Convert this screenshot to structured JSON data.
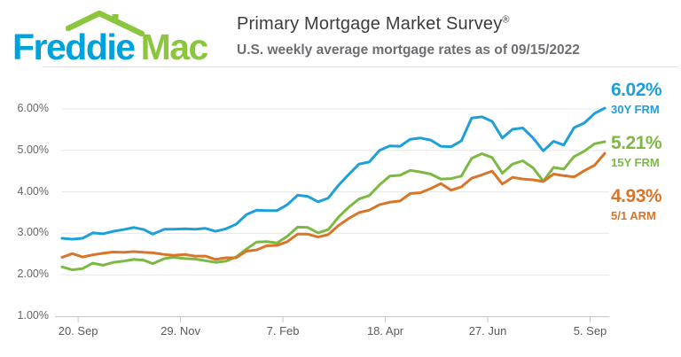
{
  "header": {
    "logo": {
      "part1": "Freddie",
      "part2": "Mac",
      "blue": "#00a2dc",
      "green": "#8cc63f",
      "icon": "house-roof-with-chimney-icon"
    },
    "title": "Primary Mortgage Market Survey",
    "title_mark": "®",
    "subtitle": "U.S. weekly average mortgage rates as of 09/15/2022"
  },
  "chart_data": {
    "type": "line",
    "title": "Primary Mortgage Market Survey®",
    "subtitle": "U.S. weekly average mortgage rates as of 09/15/2022",
    "grid": "horizontal",
    "legend_position": "right-edge-annotations",
    "ylim": [
      1.0,
      6.3
    ],
    "ylabel": "",
    "xlabel": "",
    "y_ticks": [
      {
        "label": "1.00%",
        "value": 1.0
      },
      {
        "label": "2.00%",
        "value": 2.0
      },
      {
        "label": "3.00%",
        "value": 3.0
      },
      {
        "label": "4.00%",
        "value": 4.0
      },
      {
        "label": "5.00%",
        "value": 5.0
      },
      {
        "label": "6.00%",
        "value": 6.0
      }
    ],
    "x_ticks": [
      {
        "label": "20. Sep",
        "date": "2021-09-20"
      },
      {
        "label": "29. Nov",
        "date": "2021-11-29"
      },
      {
        "label": "7. Feb",
        "date": "2022-02-07"
      },
      {
        "label": "18. Apr",
        "date": "2022-04-18"
      },
      {
        "label": "27. Jun",
        "date": "2022-06-27"
      },
      {
        "label": "5. Sep",
        "date": "2022-09-05"
      }
    ],
    "x": [
      "2021-09-09",
      "2021-09-16",
      "2021-09-23",
      "2021-09-30",
      "2021-10-07",
      "2021-10-14",
      "2021-10-21",
      "2021-10-28",
      "2021-11-04",
      "2021-11-10",
      "2021-11-18",
      "2021-11-24",
      "2021-12-02",
      "2021-12-09",
      "2021-12-16",
      "2021-12-23",
      "2021-12-30",
      "2022-01-06",
      "2022-01-13",
      "2022-01-20",
      "2022-01-27",
      "2022-02-03",
      "2022-02-10",
      "2022-02-17",
      "2022-02-24",
      "2022-03-03",
      "2022-03-10",
      "2022-03-17",
      "2022-03-24",
      "2022-03-31",
      "2022-04-07",
      "2022-04-14",
      "2022-04-21",
      "2022-04-28",
      "2022-05-05",
      "2022-05-12",
      "2022-05-19",
      "2022-05-26",
      "2022-06-02",
      "2022-06-09",
      "2022-06-16",
      "2022-06-23",
      "2022-06-30",
      "2022-07-07",
      "2022-07-14",
      "2022-07-21",
      "2022-07-28",
      "2022-08-04",
      "2022-08-11",
      "2022-08-18",
      "2022-08-25",
      "2022-09-01",
      "2022-09-08",
      "2022-09-15"
    ],
    "series": [
      {
        "name": "30Y FRM",
        "final_label": "6.02%",
        "final_value": 6.02,
        "color": "#1d9fda",
        "values": [
          2.88,
          2.86,
          2.88,
          3.01,
          2.99,
          3.05,
          3.09,
          3.14,
          3.09,
          2.98,
          3.1,
          3.1,
          3.11,
          3.1,
          3.12,
          3.05,
          3.11,
          3.22,
          3.45,
          3.56,
          3.55,
          3.55,
          3.69,
          3.92,
          3.89,
          3.76,
          3.85,
          4.16,
          4.42,
          4.67,
          4.72,
          5.0,
          5.11,
          5.1,
          5.27,
          5.3,
          5.25,
          5.1,
          5.09,
          5.23,
          5.78,
          5.81,
          5.7,
          5.3,
          5.51,
          5.54,
          5.3,
          4.99,
          5.22,
          5.13,
          5.55,
          5.66,
          5.89,
          6.02
        ]
      },
      {
        "name": "15Y FRM",
        "final_label": "5.21%",
        "final_value": 5.21,
        "color": "#7cb943",
        "values": [
          2.19,
          2.12,
          2.15,
          2.28,
          2.23,
          2.3,
          2.33,
          2.37,
          2.35,
          2.27,
          2.39,
          2.42,
          2.39,
          2.38,
          2.34,
          2.3,
          2.33,
          2.43,
          2.62,
          2.79,
          2.8,
          2.77,
          2.93,
          3.15,
          3.14,
          3.01,
          3.09,
          3.39,
          3.63,
          3.83,
          3.91,
          4.17,
          4.38,
          4.4,
          4.52,
          4.48,
          4.43,
          4.31,
          4.32,
          4.38,
          4.81,
          4.92,
          4.83,
          4.45,
          4.67,
          4.75,
          4.58,
          4.26,
          4.59,
          4.55,
          4.85,
          4.98,
          5.16,
          5.21
        ]
      },
      {
        "name": "5/1 ARM",
        "final_label": "4.93%",
        "final_value": 4.93,
        "color": "#d97528",
        "values": [
          2.42,
          2.51,
          2.43,
          2.48,
          2.52,
          2.55,
          2.54,
          2.56,
          2.54,
          2.53,
          2.49,
          2.47,
          2.49,
          2.45,
          2.45,
          2.37,
          2.41,
          2.41,
          2.57,
          2.6,
          2.7,
          2.71,
          2.8,
          2.98,
          2.98,
          2.91,
          2.97,
          3.19,
          3.36,
          3.5,
          3.56,
          3.69,
          3.75,
          3.78,
          3.96,
          3.98,
          4.08,
          4.2,
          4.04,
          4.12,
          4.33,
          4.41,
          4.5,
          4.19,
          4.35,
          4.31,
          4.29,
          4.25,
          4.43,
          4.39,
          4.36,
          4.51,
          4.64,
          4.93
        ]
      }
    ],
    "colors": {
      "grid": "#e6e6e6",
      "axis": "#c6c6c6",
      "tick_text": "#666666"
    }
  }
}
